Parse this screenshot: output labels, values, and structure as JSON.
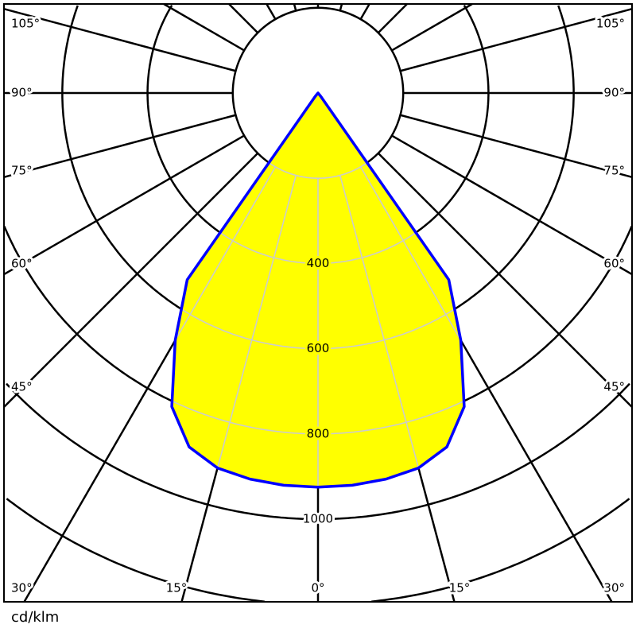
{
  "chart_data": {
    "type": "polar",
    "unit": "cd/klm",
    "symmetric": true,
    "angle_zero_direction": "down",
    "angles_deg": [
      0,
      5,
      10,
      15,
      20,
      25,
      30,
      35,
      40,
      45,
      50,
      55,
      60,
      65,
      70,
      75,
      80,
      85,
      90
    ],
    "values": [
      925,
      924,
      920,
      911,
      884,
      812,
      670,
      535,
      10,
      0,
      0,
      0,
      0,
      0,
      0,
      0,
      0,
      0,
      0
    ],
    "radial_grid": [
      200,
      400,
      600,
      800,
      1000,
      1200,
      1400
    ],
    "radial_tick_labels": [
      "400",
      "600",
      "800",
      "1000"
    ],
    "angle_grid_step_deg": 15,
    "angle_tick_labels": {
      "left": [
        "105°",
        "90°",
        "75°",
        "60°",
        "45°",
        "30°"
      ],
      "bottom": [
        "15°",
        "0°",
        "15°"
      ],
      "right": [
        "105°",
        "90°",
        "75°",
        "60°",
        "45°",
        "30°"
      ]
    },
    "colors": {
      "fill": "#ffff00",
      "outline": "#0000ff",
      "grid": "#000000",
      "grid_inside": "#cccccc"
    }
  }
}
